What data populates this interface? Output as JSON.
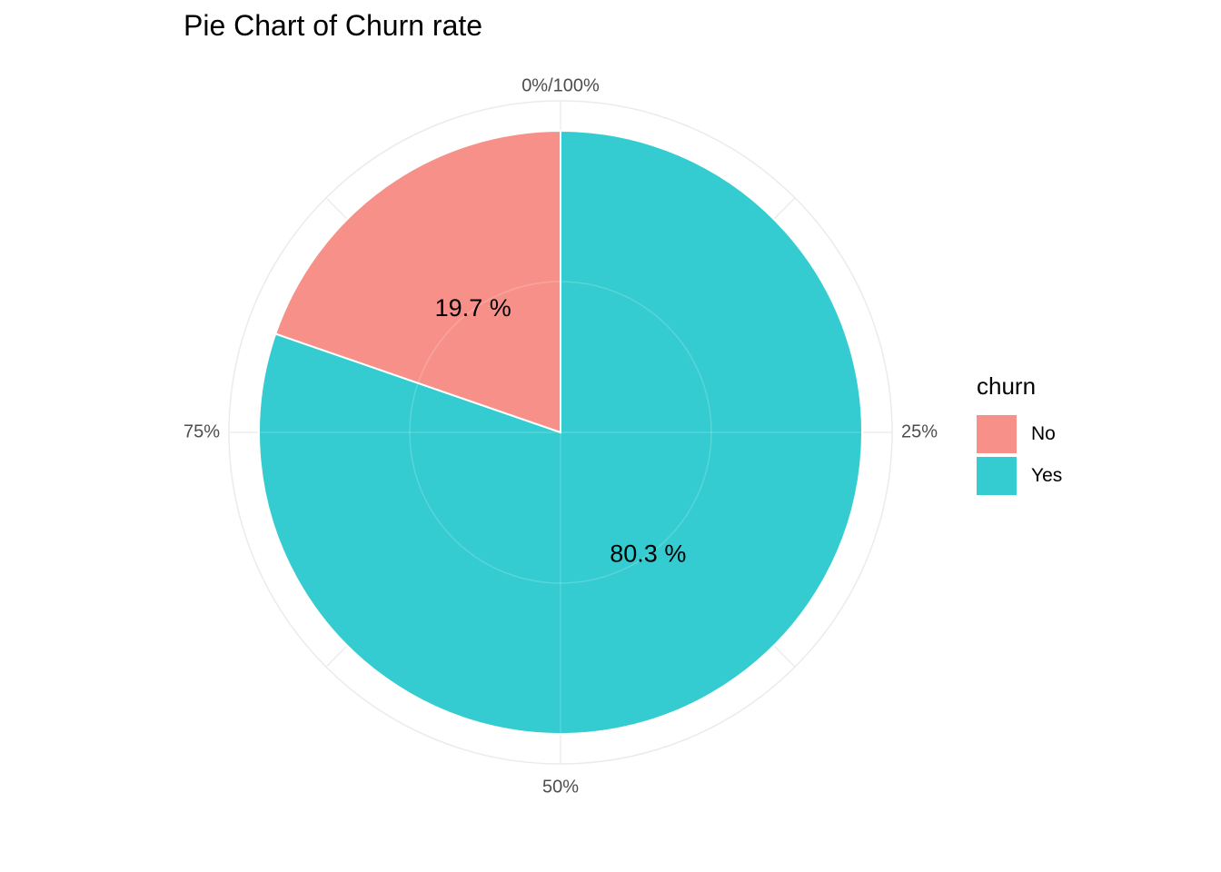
{
  "chart_data": {
    "type": "pie",
    "title": "Pie Chart of Churn rate",
    "legend": {
      "title": "churn",
      "placement": "right"
    },
    "slices": [
      {
        "label": "No",
        "value": 19.7,
        "display": "19.7 %",
        "color": "#F8908A"
      },
      {
        "label": "Yes",
        "value": 80.3,
        "display": "80.3 %",
        "color": "#34CCD1"
      }
    ],
    "angle_ticks": [
      {
        "value": 0,
        "label": "0%/100%"
      },
      {
        "value": 25,
        "label": "25%"
      },
      {
        "value": 50,
        "label": "50%"
      },
      {
        "value": 75,
        "label": "75%"
      }
    ],
    "grid": true
  }
}
